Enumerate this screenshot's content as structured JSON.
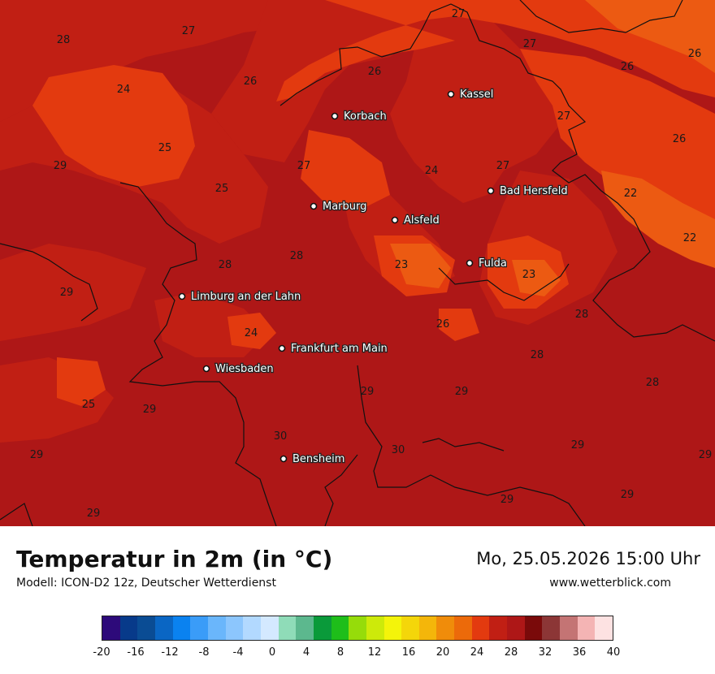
{
  "title": "Temperatur in 2m (in °C)",
  "subtitle": "Modell: ICON-D2 12z, Deutscher Wetterdienst",
  "datetime": "Mo, 25.05.2026 15:00 Uhr",
  "website": "www.wetterblick.com",
  "colors": {
    "c22": "#ec5a12",
    "c24": "#e33a0f",
    "c26": "#c11f14",
    "c28": "#ae1717",
    "border": "#111111"
  },
  "cities": [
    {
      "name": "Kassel"
    },
    {
      "name": "Korbach"
    },
    {
      "name": "Bad Hersfeld"
    },
    {
      "name": "Marburg"
    },
    {
      "name": "Alsfeld"
    },
    {
      "name": "Fulda"
    },
    {
      "name": "Limburg an der Lahn"
    },
    {
      "name": "Frankfurt am Main"
    },
    {
      "name": "Wiesbaden"
    },
    {
      "name": "Bensheim"
    }
  ],
  "temperature_labels": [
    "28",
    "27",
    "27",
    "27",
    "26",
    "26",
    "26",
    "26",
    "24",
    "25",
    "29",
    "27",
    "27",
    "24",
    "27",
    "26",
    "22",
    "25",
    "28",
    "28",
    "23",
    "23",
    "22",
    "29",
    "28",
    "24",
    "26",
    "28",
    "28",
    "29",
    "29",
    "29",
    "25",
    "29",
    "30",
    "30",
    "29",
    "29",
    "29",
    "29",
    "29"
  ],
  "legend": {
    "min": -20,
    "max": 40,
    "step": 2,
    "tick_labels": [
      "-20",
      "-16",
      "-12",
      "-8",
      "-4",
      "0",
      "4",
      "8",
      "12",
      "16",
      "20",
      "24",
      "28",
      "32",
      "36",
      "40"
    ],
    "colors": [
      "#2d0a7a",
      "#073a8a",
      "#0a4c94",
      "#0a66c4",
      "#0a82f0",
      "#3a9cf8",
      "#6ab6fb",
      "#8cc6fd",
      "#b2d9ff",
      "#d4e9ff",
      "#8fdcb8",
      "#5cb88e",
      "#0a9a3a",
      "#1ebe1a",
      "#96dc0a",
      "#cdea0a",
      "#f4f40a",
      "#f4d60a",
      "#f4b60a",
      "#f08c0a",
      "#ec6a0a",
      "#e33a0f",
      "#c11f14",
      "#ae1717",
      "#7a0a0a",
      "#8c3636",
      "#c47474",
      "#f4b4b4",
      "#fde2e2"
    ]
  }
}
